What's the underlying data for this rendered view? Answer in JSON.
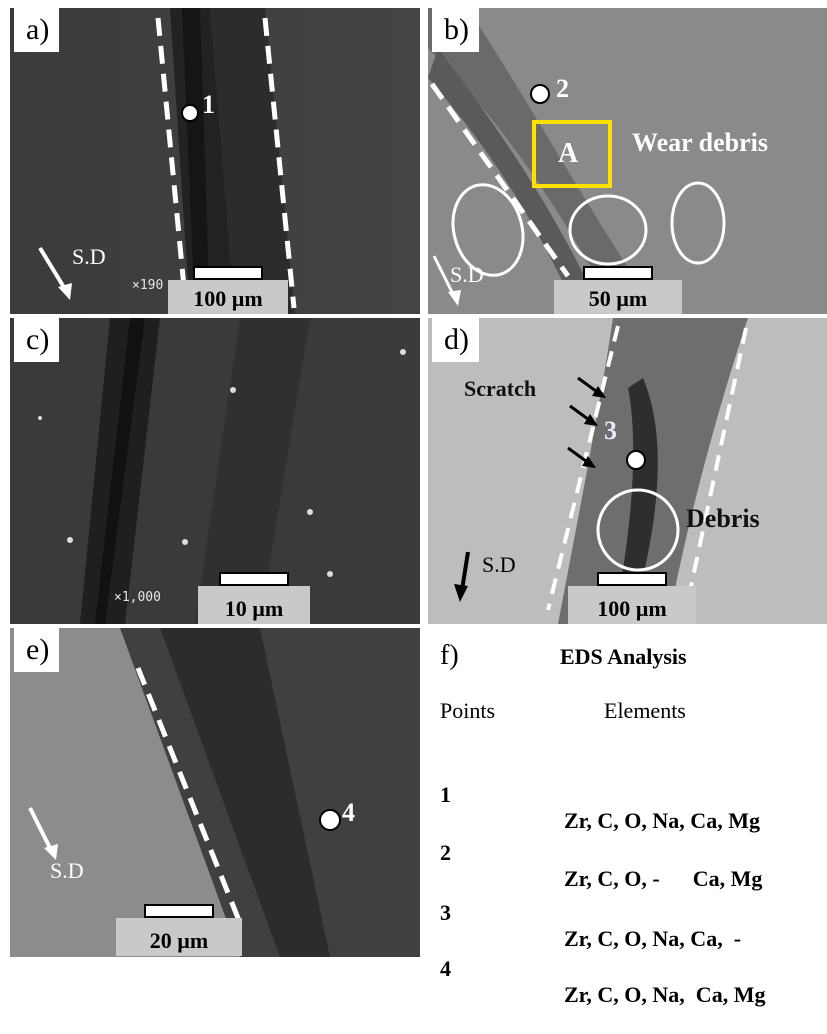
{
  "panels": {
    "a": {
      "label": "a)",
      "point": "1",
      "sd": "S.D",
      "scale": "100 µm",
      "mag": "×190"
    },
    "b": {
      "label": "b)",
      "point": "2",
      "box": "A",
      "annotation": "Wear debris",
      "sd": "S.D",
      "scale": "50 µm"
    },
    "c": {
      "label": "c)",
      "scale": "10 µm",
      "mag": "×1,000"
    },
    "d": {
      "label": "d)",
      "point": "3",
      "scratch": "Scratch",
      "debris": "Debris",
      "sd": "S.D",
      "scale": "100 µm"
    },
    "e": {
      "label": "e)",
      "point": "4",
      "sd": "S.D",
      "scale": "20 µm"
    }
  },
  "eds": {
    "label": "f)",
    "title": "EDS Analysis",
    "col_points": "Points",
    "col_elements": "Elements",
    "rows": [
      {
        "point": "1",
        "elements": "Zr, C, O, Na, Ca, Mg"
      },
      {
        "point": "2",
        "elements": "Zr, C, O, -      Ca, Mg"
      },
      {
        "point": "3",
        "elements": "Zr, C, O, Na, Ca,  -"
      },
      {
        "point": "4",
        "elements": "Zr, C, O, Na,  Ca, Mg"
      }
    ]
  }
}
